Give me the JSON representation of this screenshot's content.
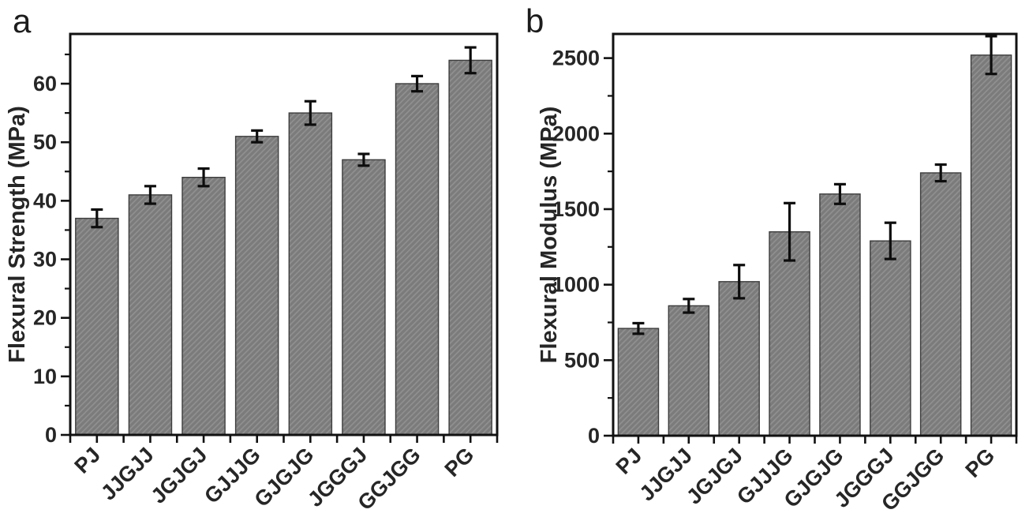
{
  "figure": {
    "background": "#ffffff",
    "panels": [
      {
        "label": "a"
      },
      {
        "label": "b"
      }
    ]
  },
  "colors": {
    "bar_fill": "#7b7b7b",
    "bar_hatch_line": "#909090",
    "bar_edge": "#3d3d3d",
    "axis_line": "#111111",
    "error_bar": "#0d0d0d",
    "label_text": "#262626"
  },
  "chart_data": [
    {
      "type": "bar",
      "panel": "a",
      "title": "",
      "xlabel": "",
      "ylabel": "Flexural Strength (MPa)",
      "categories": [
        "PJ",
        "JJGJJ",
        "JGJGJ",
        "GJJJG",
        "GJGJG",
        "JGGGJ",
        "GGJGG",
        "PG"
      ],
      "values": [
        37,
        41,
        44,
        51,
        55,
        47,
        60,
        64
      ],
      "errors": [
        1.5,
        1.5,
        1.5,
        1,
        2,
        1,
        1.3,
        2.2
      ],
      "ylim": [
        0,
        68.5
      ],
      "yticks": [
        0,
        10,
        20,
        30,
        40,
        50,
        60
      ],
      "ytick_minor_step": 5,
      "grid": false,
      "legend": "none",
      "bar_hatch": "diagonal"
    },
    {
      "type": "bar",
      "panel": "b",
      "title": "",
      "xlabel": "",
      "ylabel": "Flexural Modulus (MPa)",
      "categories": [
        "PJ",
        "JJGJJ",
        "JGJGJ",
        "GJJJG",
        "GJGJG",
        "JGGGJ",
        "GGJGG",
        "PG"
      ],
      "values": [
        710,
        860,
        1020,
        1350,
        1600,
        1290,
        1740,
        2520
      ],
      "errors": [
        35,
        45,
        110,
        190,
        65,
        120,
        55,
        125
      ],
      "ylim": [
        0,
        2660
      ],
      "yticks": [
        0,
        500,
        1000,
        1500,
        2000,
        2500
      ],
      "ytick_minor_step": 250,
      "grid": false,
      "legend": "none",
      "bar_hatch": "diagonal"
    }
  ]
}
